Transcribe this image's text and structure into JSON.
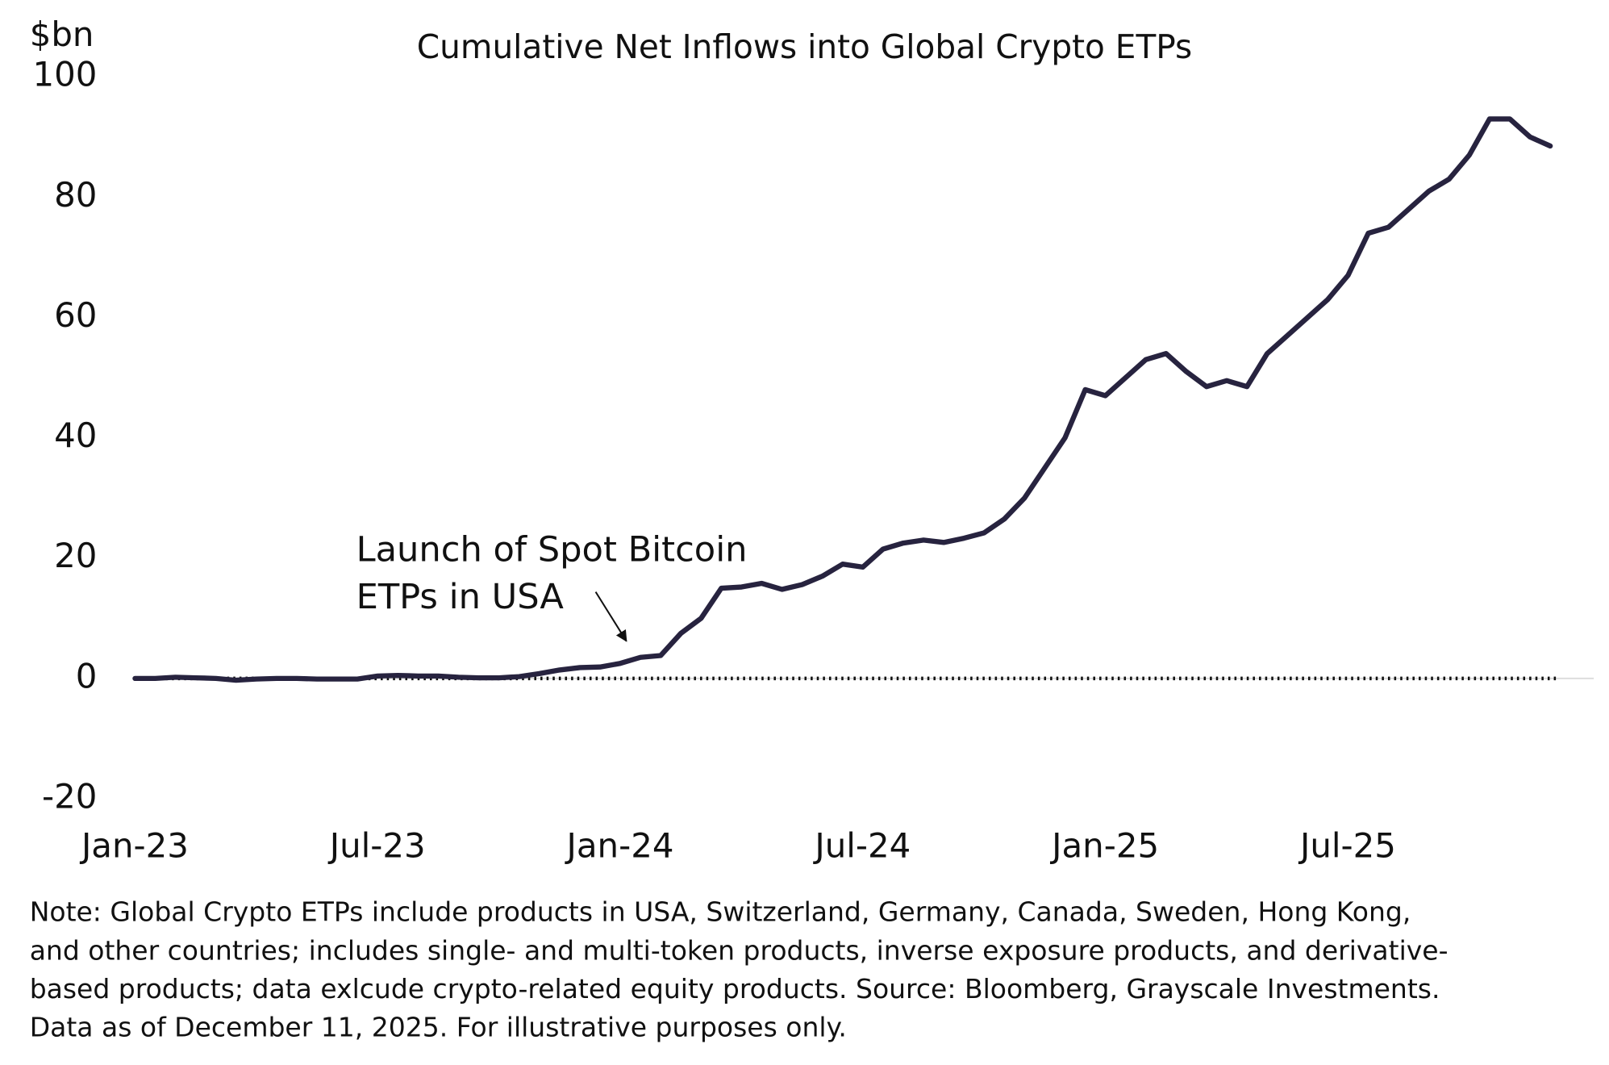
{
  "chart_data": {
    "type": "line",
    "title": "Cumulative Net Inflows into Global Crypto ETPs",
    "y_label": "$bn",
    "color": "#27233f",
    "categories": [
      "Jan-23",
      null,
      null,
      null,
      null,
      null,
      null,
      null,
      null,
      null,
      null,
      null,
      "Jul-23",
      null,
      null,
      null,
      null,
      null,
      null,
      null,
      null,
      null,
      null,
      null,
      "Jan-24",
      null,
      null,
      null,
      null,
      null,
      null,
      null,
      null,
      null,
      null,
      null,
      "Jul-24",
      null,
      null,
      null,
      null,
      null,
      null,
      null,
      null,
      null,
      null,
      null,
      "Jan-25",
      null,
      null,
      null,
      null,
      null,
      null,
      null,
      null,
      null,
      null,
      null,
      "Jul-25",
      null,
      null,
      null,
      null,
      null,
      null,
      null,
      null,
      null,
      null
    ],
    "values": [
      0,
      0,
      0.2,
      0.1,
      0,
      -0.3,
      -0.1,
      0,
      0,
      -0.1,
      -0.1,
      -0.1,
      0.4,
      0.5,
      0.4,
      0.4,
      0.2,
      0.1,
      0.1,
      0.3,
      0.8,
      1.4,
      1.8,
      1.9,
      2.5,
      3.5,
      3.8,
      7.5,
      10,
      15,
      15.2,
      15.8,
      14.8,
      15.6,
      17,
      19,
      18.5,
      21.5,
      22.5,
      23,
      22.6,
      23.3,
      24.2,
      26.5,
      30,
      35,
      40,
      48,
      47,
      50,
      53,
      54,
      51,
      48.5,
      49.5,
      48.5,
      54,
      57,
      60,
      63,
      67,
      74,
      75,
      78,
      81,
      83,
      87,
      93,
      93,
      90,
      88.5
    ],
    "ylim": [
      -20,
      100
    ],
    "yticks": [
      -20,
      0,
      20,
      40,
      60,
      80,
      100
    ],
    "zero_line": true,
    "annotation": [
      "Launch of Spot Bitcoin",
      "ETPs in USA"
    ],
    "note": [
      "Note: Global Crypto ETPs include products in USA, Switzerland, Germany, Canada, Sweden, Hong Kong,",
      "and other countries; includes single- and multi-token products, inverse exposure products, and derivative-",
      "based products; data exlcude crypto-related equity products. Source: Bloomberg, Grayscale Investments.",
      "Data as of December 11, 2025. For illustrative purposes only."
    ]
  }
}
